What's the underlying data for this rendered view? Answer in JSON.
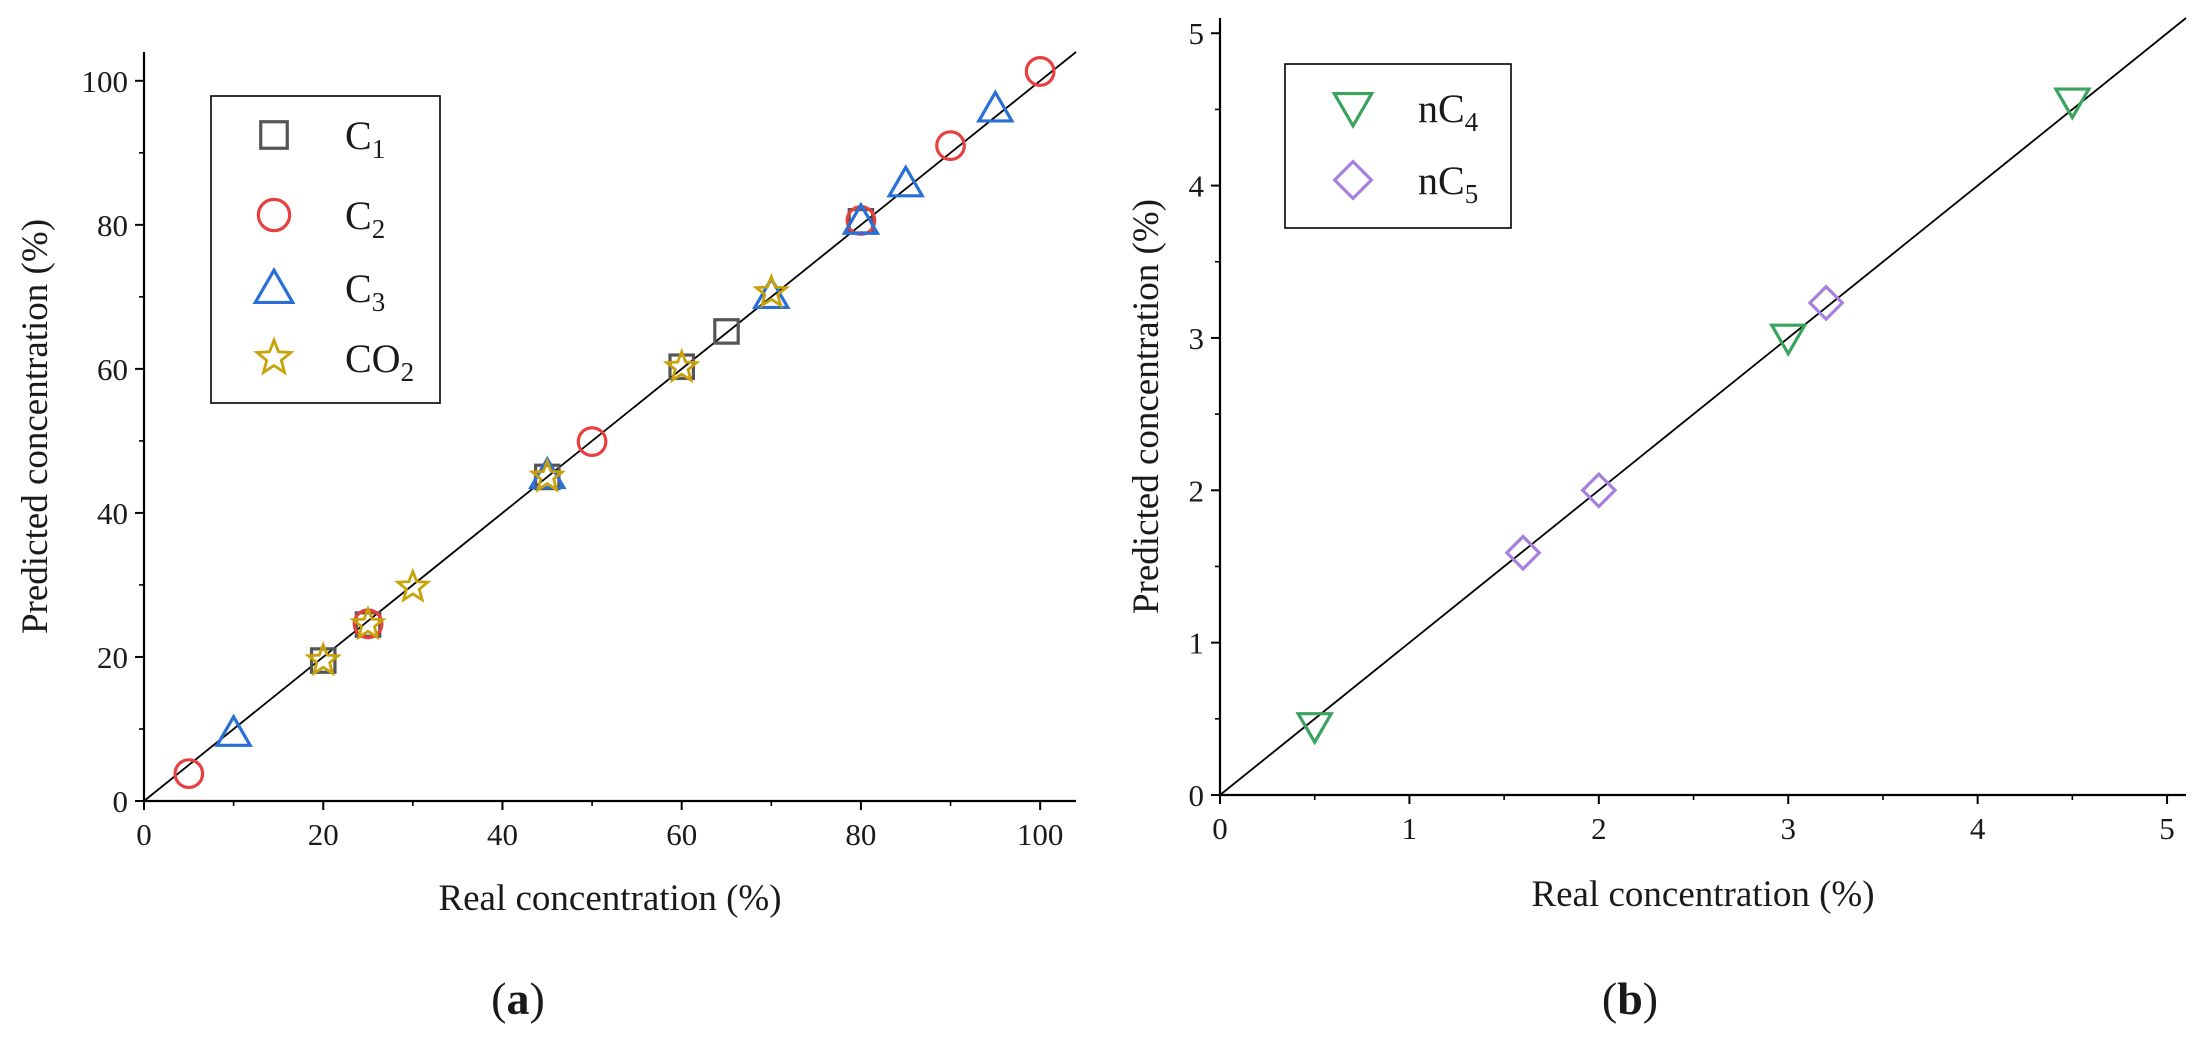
{
  "chart_data": [
    {
      "type": "scatter",
      "panel_label": "(a)",
      "panel_label_parts": [
        "(",
        "a",
        ")"
      ],
      "xlabel": "Real concentration (%)",
      "ylabel": "Predicted concentration (%)",
      "xlim": [
        0,
        104
      ],
      "ylim": [
        0,
        104
      ],
      "xticks": [
        0,
        20,
        40,
        60,
        80,
        100
      ],
      "yticks": [
        0,
        20,
        40,
        60,
        80,
        100
      ],
      "xtick_labels": [
        "0",
        "20",
        "40",
        "60",
        "80",
        "100"
      ],
      "ytick_labels": [
        "0",
        "20",
        "40",
        "60",
        "80",
        "100"
      ],
      "reference_line": "y = x",
      "legend_position": "top-left",
      "series": [
        {
          "name": "C1",
          "label_main": "C",
          "label_sub": "1",
          "marker": "square",
          "color": "#555555",
          "x": [
            20,
            25,
            45,
            60,
            65,
            80
          ],
          "y": [
            19.5,
            24.5,
            45,
            60.3,
            65.2,
            80.5
          ]
        },
        {
          "name": "C2",
          "label_main": "C",
          "label_sub": "2",
          "marker": "circle",
          "color": "#e8403f",
          "x": [
            5,
            25,
            50,
            80,
            90,
            100
          ],
          "y": [
            3.8,
            24.6,
            49.9,
            80.6,
            91.0,
            101.3
          ]
        },
        {
          "name": "C3",
          "label_main": "C",
          "label_sub": "3",
          "marker": "triangle-up",
          "color": "#2a6fd6",
          "x": [
            10,
            45,
            70,
            80,
            85,
            95
          ],
          "y": [
            9.5,
            45.3,
            70.3,
            80.6,
            85.8,
            96.2
          ]
        },
        {
          "name": "CO2",
          "label_main": "CO",
          "label_sub": "2",
          "marker": "star",
          "color": "#c9a20a",
          "x": [
            20,
            25,
            30,
            45,
            60,
            70
          ],
          "y": [
            19.5,
            24.5,
            29.7,
            45.0,
            60.2,
            70.6
          ]
        }
      ]
    },
    {
      "type": "scatter",
      "panel_label": "(b)",
      "panel_label_parts": [
        "(",
        "b",
        ")"
      ],
      "xlabel": "Real concentration (%)",
      "ylabel": "Predicted concentration (%)",
      "xlim": [
        0,
        5.1
      ],
      "ylim": [
        0,
        5.1
      ],
      "xticks": [
        0,
        1,
        2,
        3,
        4,
        5
      ],
      "yticks": [
        0,
        1,
        2,
        3,
        4,
        5
      ],
      "xtick_labels": [
        "0",
        "1",
        "2",
        "3",
        "4",
        "5"
      ],
      "ytick_labels": [
        "0",
        "1",
        "2",
        "3",
        "4",
        "5"
      ],
      "reference_line": "y = x",
      "legend_position": "top-left",
      "series": [
        {
          "name": "nC4",
          "label_main": "nC",
          "label_sub": "4",
          "marker": "triangle-down",
          "color": "#3aa35e",
          "x": [
            0.5,
            3.0,
            4.5
          ],
          "y": [
            0.45,
            3.0,
            4.55
          ]
        },
        {
          "name": "nC5",
          "label_main": "nC",
          "label_sub": "5",
          "marker": "diamond",
          "color": "#a77fdd",
          "x": [
            1.6,
            2.0,
            3.2
          ],
          "y": [
            1.59,
            2.0,
            3.23
          ]
        }
      ]
    }
  ]
}
